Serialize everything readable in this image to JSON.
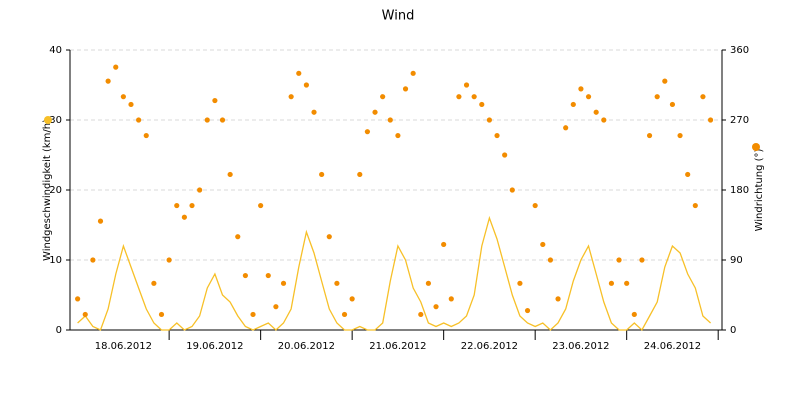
{
  "chart_data": {
    "type": "line-scatter",
    "title": "Wind",
    "x": [
      0,
      2,
      4,
      6,
      8,
      10,
      12,
      14,
      16,
      18,
      20,
      22,
      24,
      26,
      28,
      30,
      32,
      34,
      36,
      38,
      40,
      42,
      44,
      46,
      48,
      50,
      52,
      54,
      56,
      58,
      60,
      62,
      64,
      66,
      68,
      70,
      72,
      74,
      76,
      78,
      80,
      82,
      84,
      86,
      88,
      90,
      92,
      94,
      96,
      98,
      100,
      102,
      104,
      106,
      108,
      110,
      112,
      114,
      116,
      118,
      120,
      122,
      124,
      126,
      128,
      130,
      132,
      134,
      136,
      138,
      140,
      142,
      144,
      146,
      148,
      150,
      152,
      154,
      156,
      158,
      160,
      162,
      164,
      166
    ],
    "xlim": [
      -2,
      169
    ],
    "xticks": [
      {
        "value": 12,
        "label": "18.06.2012"
      },
      {
        "value": 36,
        "label": "19.06.2012"
      },
      {
        "value": 60,
        "label": "20.06.2012"
      },
      {
        "value": 84,
        "label": "21.06.2012"
      },
      {
        "value": 108,
        "label": "22.06.2012"
      },
      {
        "value": 132,
        "label": "23.06.2012"
      },
      {
        "value": 156,
        "label": "24.06.2012"
      }
    ],
    "ylim": [
      0,
      40
    ],
    "yticks": [
      0,
      10,
      20,
      30,
      40
    ],
    "y2lim": [
      0,
      360
    ],
    "y2ticks": [
      0,
      90,
      180,
      270,
      360
    ],
    "grid": true,
    "series": [
      {
        "name": "Windgeschwindigkeit (km/h)",
        "color": "#f7c028",
        "kind": "line",
        "values": [
          1,
          2,
          0.5,
          0,
          3,
          8,
          12,
          9,
          6,
          3,
          1,
          0,
          0,
          1,
          0,
          0.5,
          2,
          6,
          8,
          5,
          4,
          2,
          0.5,
          0,
          0.5,
          1,
          0,
          1,
          3,
          9,
          14,
          11,
          7,
          3,
          1,
          0,
          0,
          0.5,
          0,
          0,
          1,
          7,
          12,
          10,
          6,
          4,
          1,
          0.5,
          1,
          0.5,
          1,
          2,
          5,
          12,
          16,
          13,
          9,
          5,
          2,
          1,
          0.5,
          1,
          0,
          1,
          3,
          7,
          10,
          12,
          8,
          4,
          1,
          0,
          0,
          1,
          0,
          2,
          4,
          9,
          12,
          11,
          8,
          6,
          2,
          1
        ]
      },
      {
        "name": "Windrichtung (°)",
        "color": "#f28c00",
        "kind": "scatter",
        "axis": "y2",
        "values": [
          40,
          20,
          90,
          140,
          320,
          338,
          300,
          290,
          270,
          250,
          60,
          20,
          90,
          160,
          145,
          160,
          180,
          270,
          295,
          270,
          200,
          120,
          70,
          20,
          160,
          70,
          30,
          60,
          300,
          330,
          315,
          280,
          200,
          120,
          60,
          20,
          40,
          200,
          255,
          280,
          300,
          270,
          250,
          310,
          330,
          20,
          60,
          30,
          110,
          40,
          300,
          315,
          300,
          290,
          270,
          250,
          225,
          180,
          60,
          25,
          160,
          110,
          90,
          40,
          260,
          290,
          310,
          300,
          280,
          270,
          60,
          90,
          60,
          20,
          90,
          250,
          300,
          320,
          290,
          250,
          200,
          160,
          300,
          270
        ]
      }
    ]
  }
}
